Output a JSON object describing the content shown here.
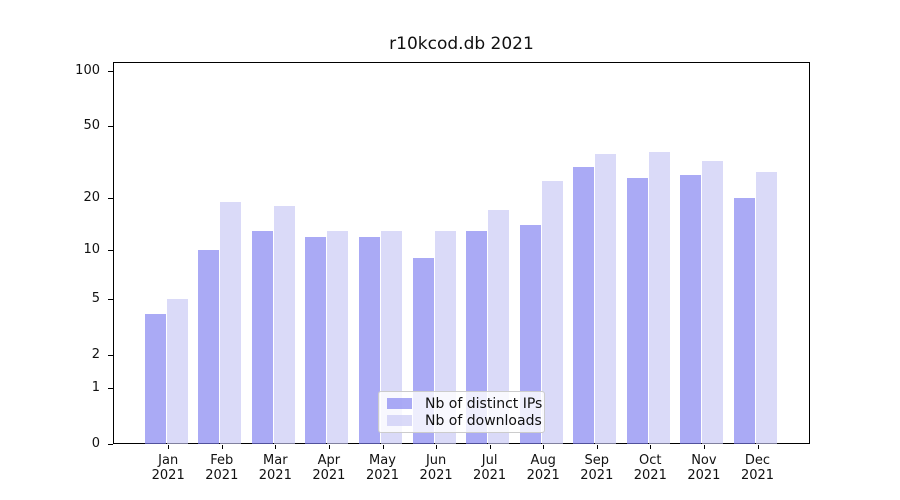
{
  "chart_data": {
    "type": "bar",
    "title": "r10kcod.db 2021",
    "categories": [
      "Jan 2021",
      "Feb 2021",
      "Mar 2021",
      "Apr 2021",
      "May 2021",
      "Jun 2021",
      "Jul 2021",
      "Aug 2021",
      "Sep 2021",
      "Oct 2021",
      "Nov 2021",
      "Dec 2021"
    ],
    "x_tick_months": [
      "Jan",
      "Feb",
      "Mar",
      "Apr",
      "May",
      "Jun",
      "Jul",
      "Aug",
      "Sep",
      "Oct",
      "Nov",
      "Dec"
    ],
    "x_tick_year": "2021",
    "series": [
      {
        "name": "Nb of distinct IPs",
        "color": "rgba(124,124,240,0.65)",
        "values": [
          4,
          10,
          13,
          12,
          12,
          9,
          13,
          14,
          30,
          26,
          27,
          20
        ]
      },
      {
        "name": "Nb of downloads",
        "color": "rgba(198,198,244,0.65)",
        "values": [
          5,
          19,
          18,
          13,
          13,
          13,
          17,
          25,
          35,
          36,
          32,
          28
        ]
      }
    ],
    "y_scale": "log1p",
    "ylim": [
      0,
      113
    ],
    "y_major_ticks": [
      0,
      1,
      2,
      5,
      10,
      20,
      50,
      100
    ],
    "y_minor_gridlines": [
      0.2,
      0.4,
      0.6,
      0.8,
      3,
      4,
      6,
      7,
      8,
      9,
      30,
      40,
      60,
      70,
      80,
      90
    ],
    "grid": true,
    "legend_position": "lower center"
  }
}
